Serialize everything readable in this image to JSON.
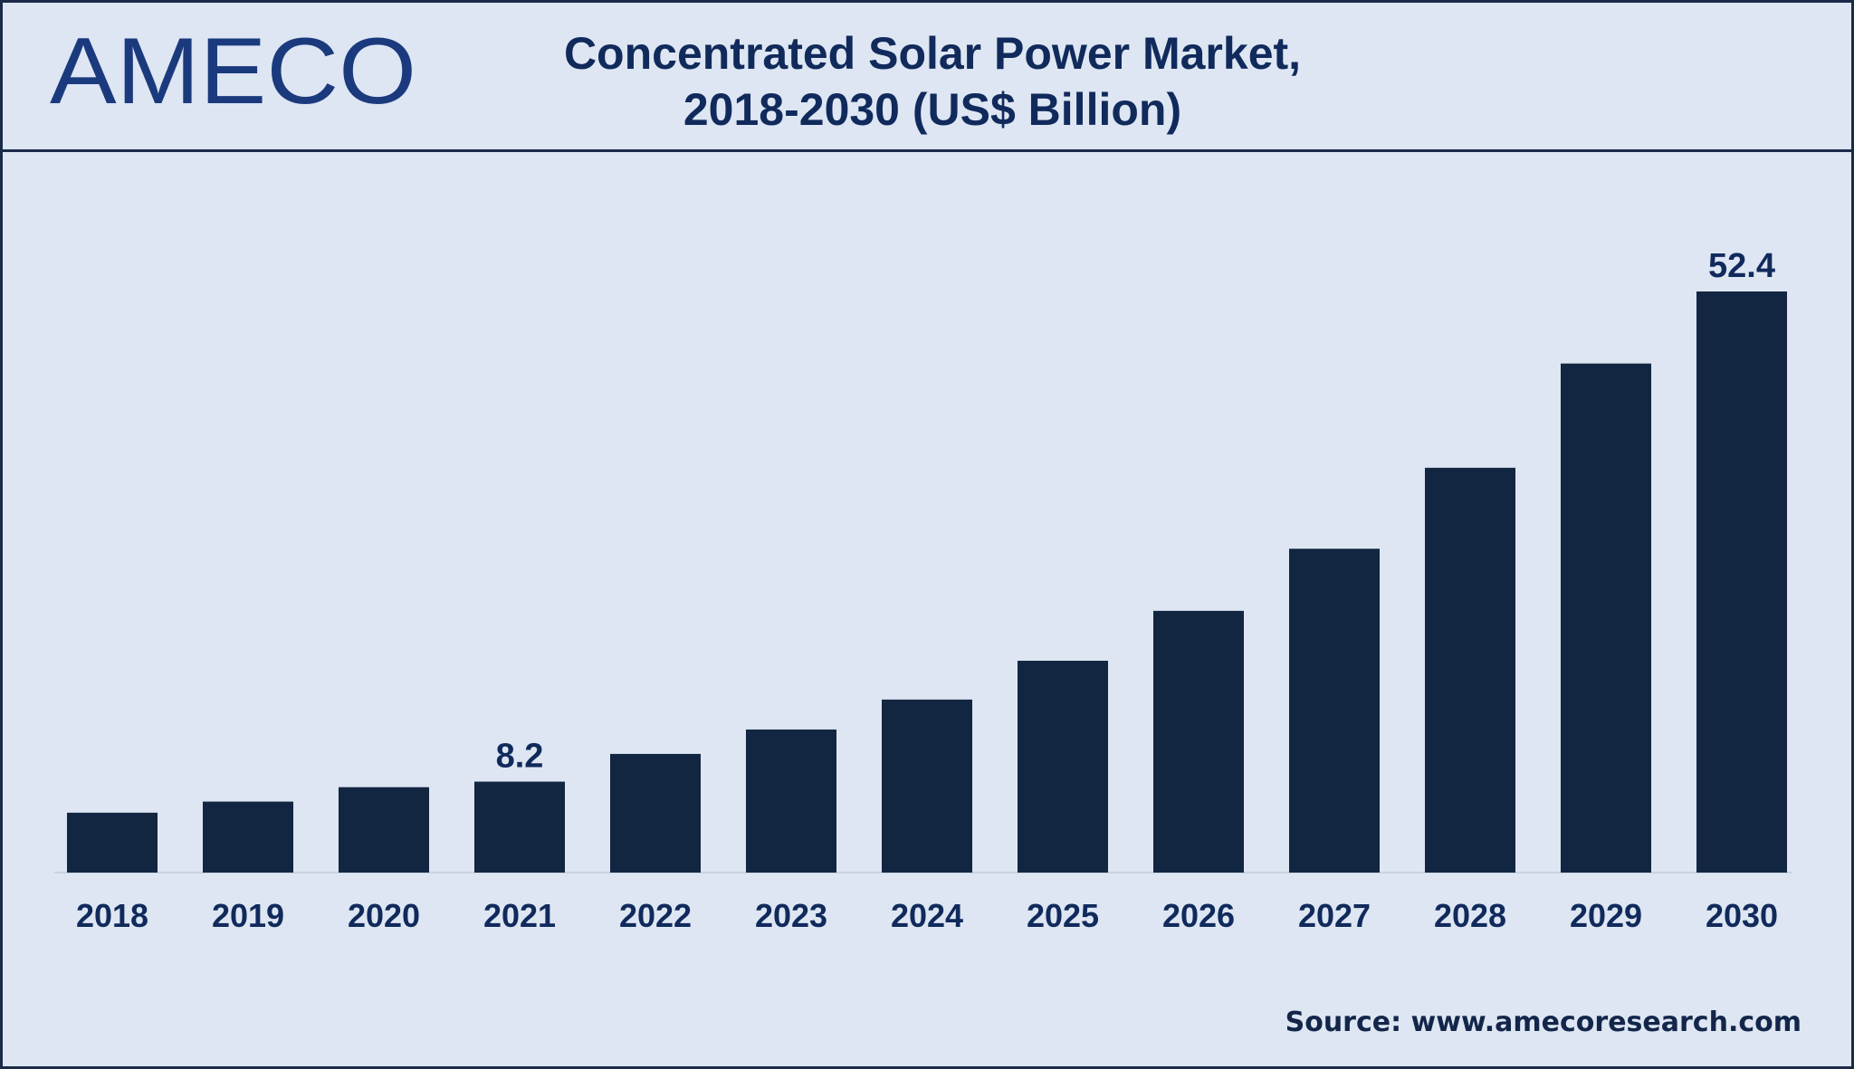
{
  "brand": {
    "name": "AMECO",
    "color": "#1b3a7e"
  },
  "source": "Source: www.amecoresearch.com",
  "colors": {
    "background": "#dde6f2",
    "bar": "#122641",
    "text": "#112a5c"
  },
  "chart_data": {
    "type": "bar",
    "title": "Concentrated Solar Power Market,",
    "subtitle": "2018-2030 (US$ Billion)",
    "xlabel": "",
    "ylabel": "",
    "categories": [
      "2018",
      "2019",
      "2020",
      "2021",
      "2022",
      "2023",
      "2024",
      "2025",
      "2026",
      "2027",
      "2028",
      "2029",
      "2030"
    ],
    "values": [
      5.4,
      6.4,
      7.7,
      8.2,
      10.7,
      12.9,
      15.6,
      19.1,
      23.6,
      29.2,
      36.5,
      45.9,
      52.4
    ],
    "ylim": [
      0,
      60
    ],
    "grid": false,
    "legend": "none",
    "data_labels": [
      {
        "category": "2021",
        "text": "8.2"
      },
      {
        "category": "2030",
        "text": "52.4"
      }
    ]
  }
}
